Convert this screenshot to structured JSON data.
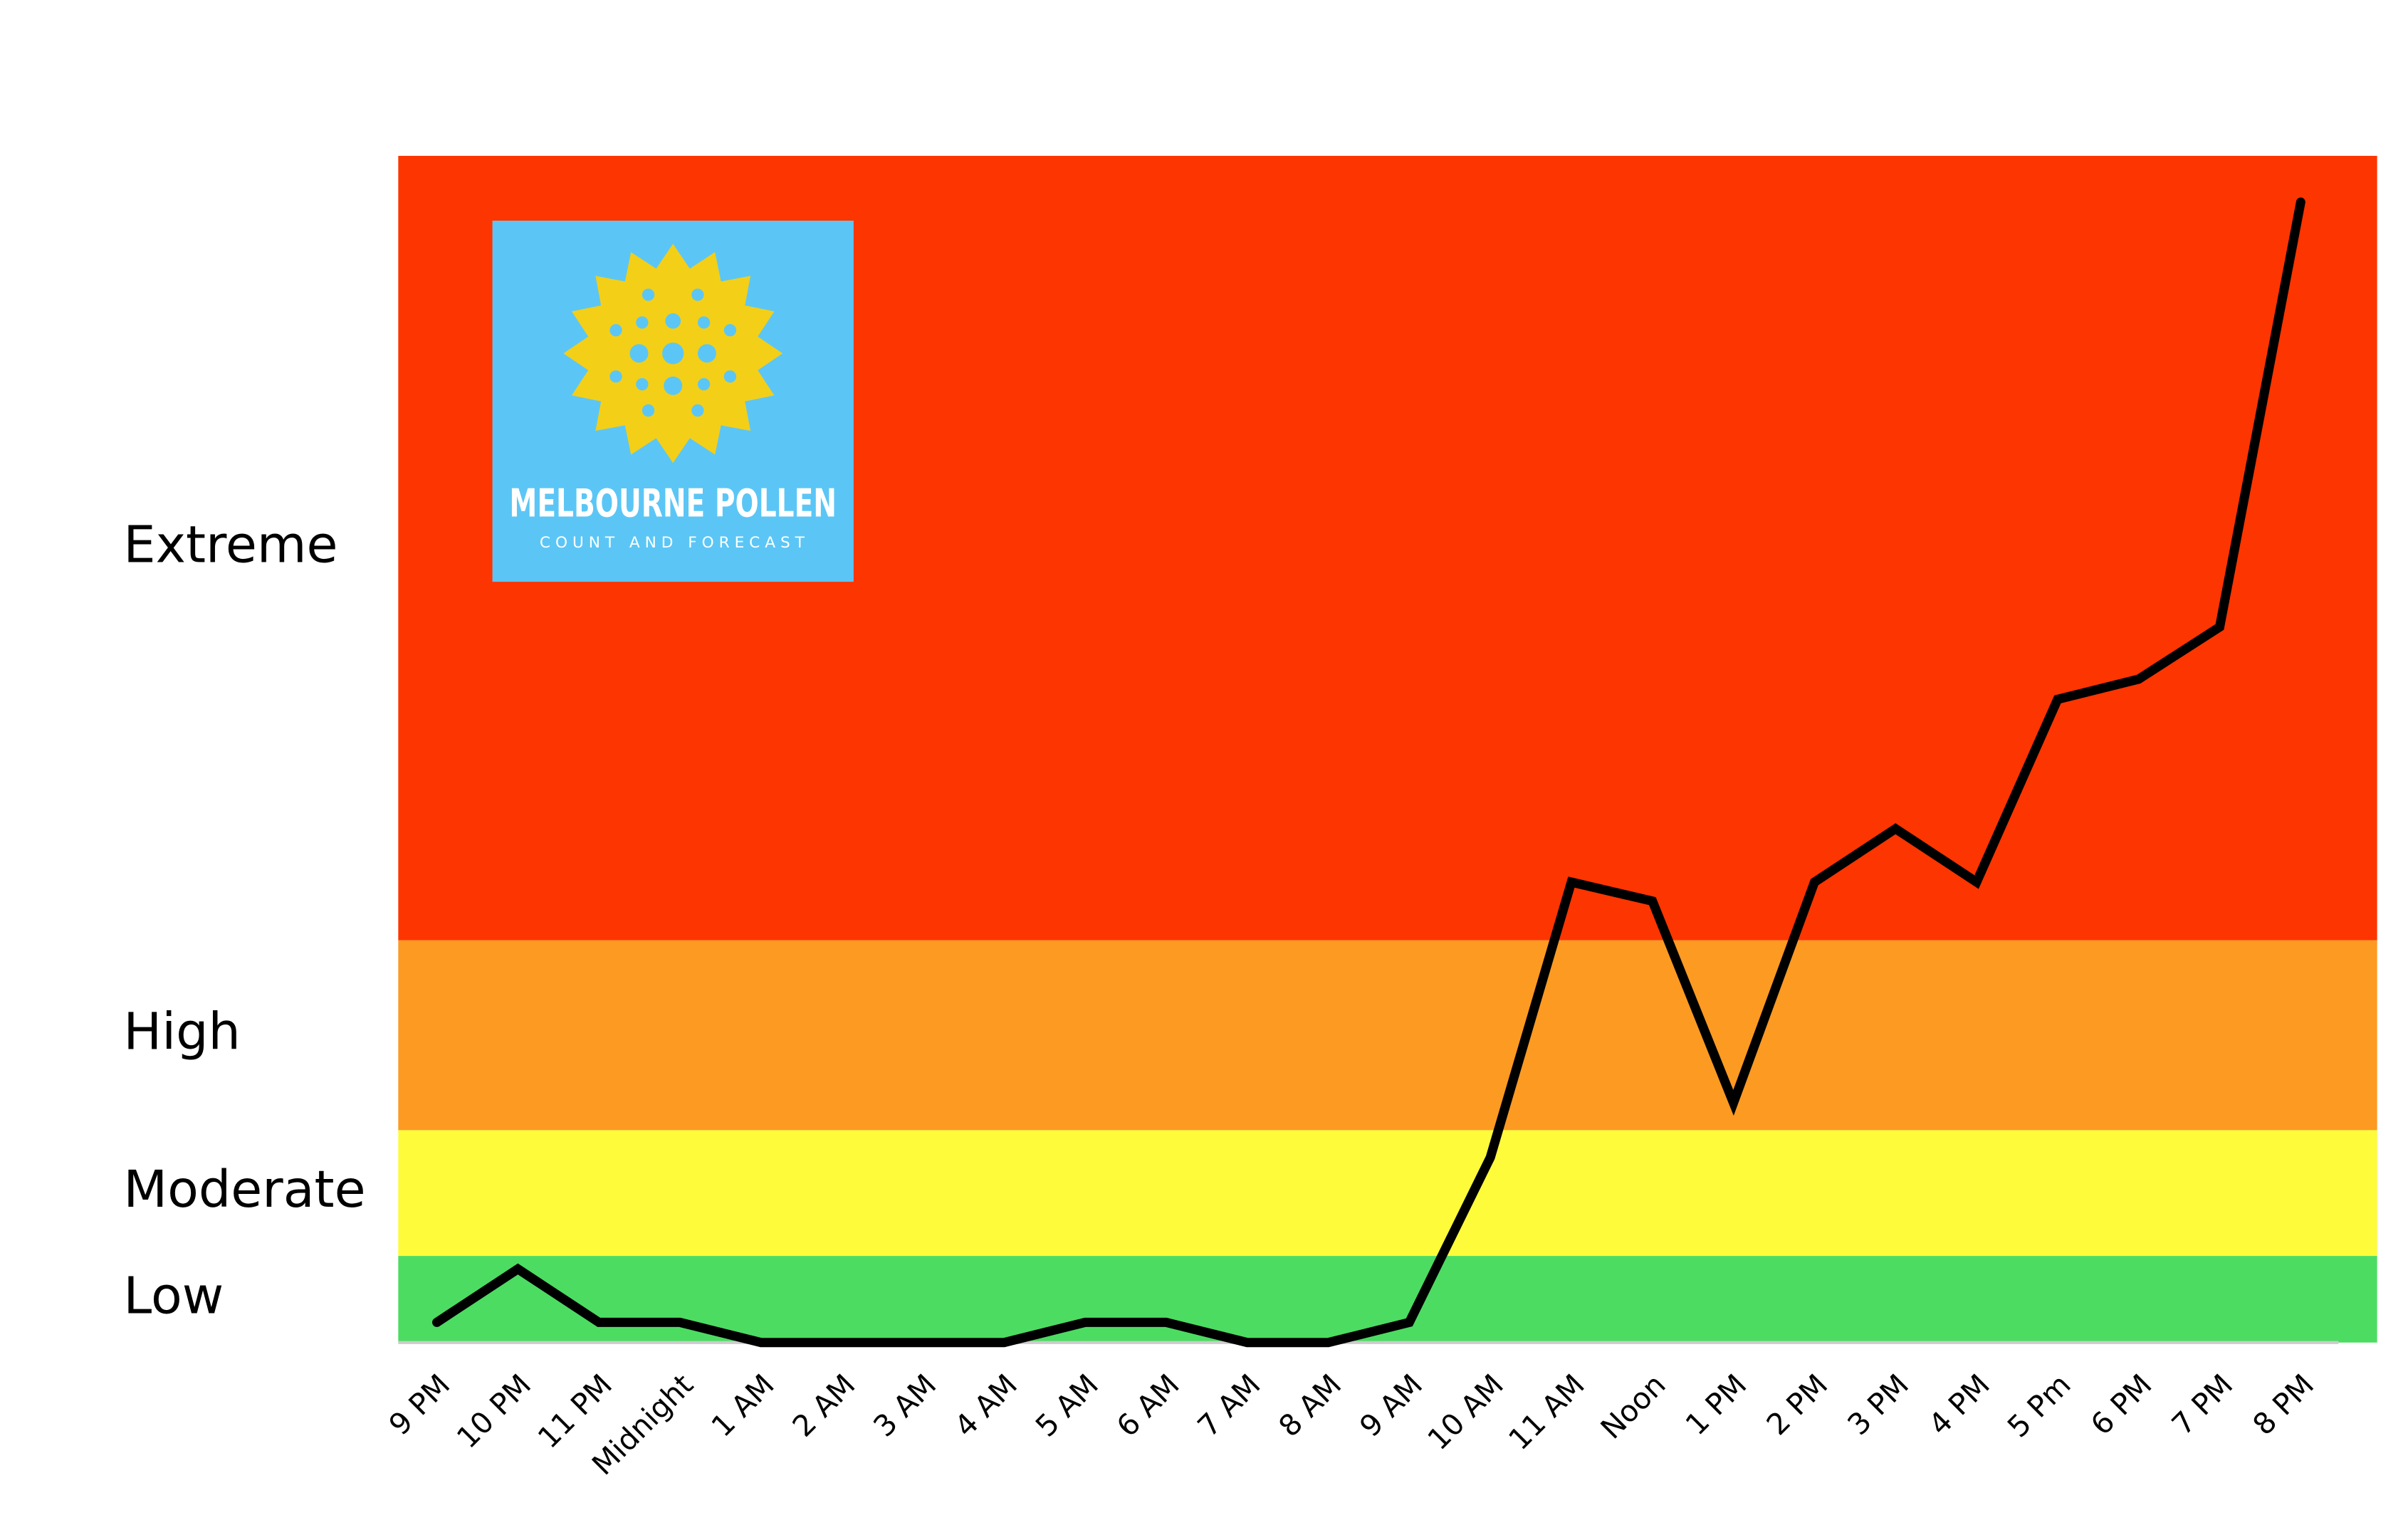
{
  "chart_data": {
    "type": "line",
    "logo": {
      "title": "MELBOURNE POLLEN",
      "subtitle": "COUNT AND FORECAST"
    },
    "categories": [
      "9 PM",
      "10 PM",
      "11 PM",
      "Midnight",
      "1 AM",
      "2 AM",
      "3 AM",
      "4 AM",
      "5 AM",
      "6 AM",
      "7 AM",
      "8 AM",
      "9 AM",
      "10 AM",
      "11 AM",
      "Noon",
      "1 PM",
      "2 PM",
      "3 PM",
      "4 PM",
      "5 Pm",
      "6 PM",
      "7 PM",
      "8 PM"
    ],
    "series": [
      {
        "color": "#000000",
        "values": [
          1.7,
          6.2,
          1.7,
          1.7,
          0,
          0,
          0,
          0,
          1.7,
          1.7,
          0,
          0,
          1.7,
          15.6,
          38.8,
          37.2,
          20.2,
          38.8,
          43.3,
          38.8,
          54.2,
          55.9,
          60.3,
          96.1
        ]
      }
    ],
    "bands": [
      {
        "label": "Low",
        "from": 0,
        "to": 7.3,
        "color": "#4cdc62"
      },
      {
        "label": "Moderate",
        "from": 7.3,
        "to": 17.9,
        "color": "#fdfb3a"
      },
      {
        "label": "High",
        "from": 17.9,
        "to": 33.9,
        "color": "#fc9a22"
      },
      {
        "label": "Extreme",
        "from": 33.9,
        "to": 100,
        "color": "#fd3500"
      }
    ],
    "ylim": [
      0,
      100
    ]
  }
}
